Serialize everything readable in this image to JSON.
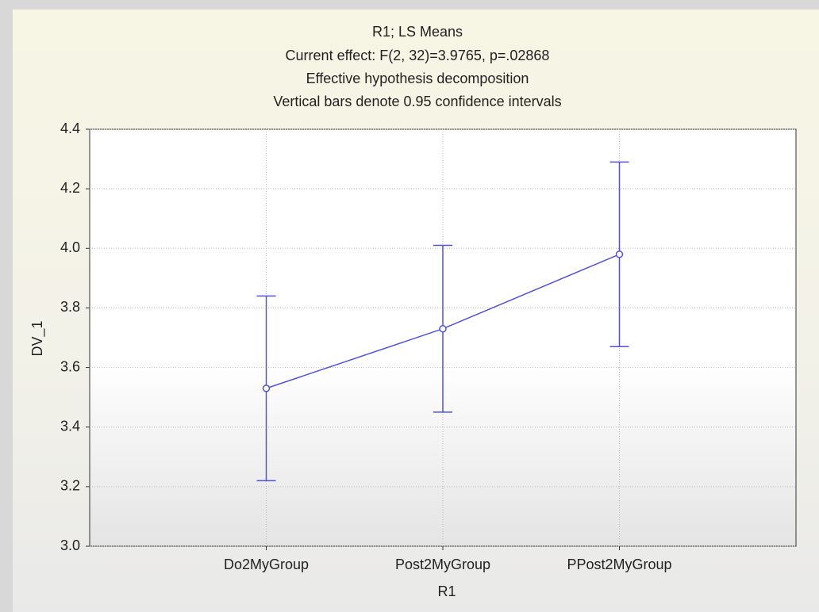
{
  "chart_data": {
    "type": "line",
    "title": "R1; LS Means",
    "subtitle": [
      "Current effect: F(2, 32)=3.9765, p=.02868",
      "Effective hypothesis decomposition",
      "Vertical bars denote 0.95 confidence intervals"
    ],
    "x_label": "R1",
    "y_label": "DV_1",
    "categories": [
      "Do2MyGroup",
      "Post2MyGroup",
      "PPost2MyGroup"
    ],
    "series": [
      {
        "color": "#5252d4",
        "values": [
          3.53,
          3.73,
          3.98
        ],
        "errors": [
          0.31,
          0.28,
          0.31
        ]
      }
    ],
    "ylim": [
      3.0,
      4.4
    ],
    "yticks": [
      {
        "value": 3.0,
        "label": "3.0"
      },
      3.2,
      3.4,
      3.6,
      3.8,
      {
        "value": 4.0,
        "label": "4.0"
      },
      4.2,
      4.4
    ],
    "grid": true
  }
}
